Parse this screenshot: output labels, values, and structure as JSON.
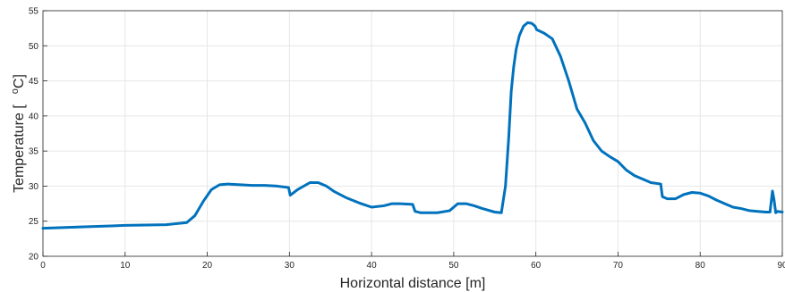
{
  "chart_data": {
    "type": "line",
    "title": "",
    "xlabel": "Horizontal distance [m]",
    "ylabel_parts": [
      "Temperature [",
      "o",
      "C]"
    ],
    "xlim": [
      0,
      90
    ],
    "ylim": [
      20,
      55
    ],
    "xticks": [
      0,
      10,
      20,
      30,
      40,
      50,
      60,
      70,
      80,
      90
    ],
    "yticks": [
      20,
      25,
      30,
      35,
      40,
      45,
      50,
      55
    ],
    "grid": true,
    "series": [
      {
        "color": "#0072BD",
        "x": [
          0,
          5,
          10,
          15,
          17.5,
          18.5,
          19.5,
          20.5,
          21.5,
          22.5,
          24,
          25.5,
          27,
          28.5,
          29.9,
          30.1,
          31,
          32.5,
          33.5,
          34.5,
          35.5,
          37,
          38.5,
          40,
          41.5,
          42.5,
          43.5,
          45,
          45.3,
          46,
          48,
          49.5,
          50.5,
          51.5,
          52.5,
          53.5,
          55,
          55.8,
          56.3,
          56.7,
          57,
          57.3,
          57.6,
          58,
          58.5,
          59,
          59.5,
          59.9,
          60.1,
          61,
          62,
          63,
          64,
          65,
          66,
          67,
          68,
          69,
          70,
          71,
          72,
          74,
          75.2,
          75.4,
          76,
          77,
          78,
          79,
          80,
          81,
          82,
          83,
          84,
          85,
          86,
          87,
          88,
          88.5,
          88.8,
          89,
          89.2,
          89.4,
          90
        ],
        "y": [
          24.0,
          24.2,
          24.4,
          24.5,
          24.8,
          25.8,
          27.8,
          29.5,
          30.2,
          30.3,
          30.2,
          30.1,
          30.1,
          30.0,
          29.8,
          28.7,
          29.5,
          30.5,
          30.5,
          30.0,
          29.2,
          28.3,
          27.6,
          27.0,
          27.2,
          27.5,
          27.5,
          27.4,
          26.4,
          26.2,
          26.2,
          26.5,
          27.5,
          27.5,
          27.2,
          26.8,
          26.3,
          26.2,
          30.0,
          37.0,
          43.5,
          47.0,
          49.5,
          51.5,
          52.8,
          53.3,
          53.2,
          52.8,
          52.3,
          51.8,
          51.0,
          48.5,
          45.0,
          41.0,
          39.0,
          36.5,
          35.0,
          34.2,
          33.5,
          32.3,
          31.5,
          30.5,
          30.3,
          28.5,
          28.2,
          28.2,
          28.8,
          29.1,
          29.0,
          28.6,
          28.0,
          27.5,
          27.0,
          26.8,
          26.5,
          26.4,
          26.3,
          26.3,
          29.3,
          28.0,
          26.2,
          26.4,
          26.3
        ]
      }
    ]
  }
}
